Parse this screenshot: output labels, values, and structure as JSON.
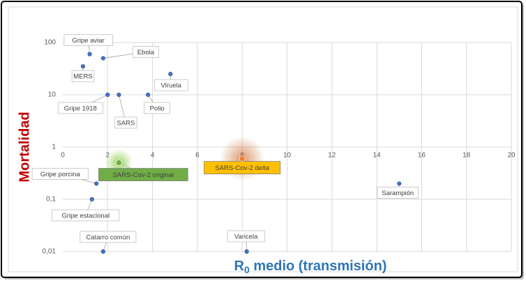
{
  "chart_data": {
    "type": "scatter",
    "y_label": "Mortalidad",
    "x_label": {
      "main": "R",
      "sub": "0",
      "rest": " medio (transmisión)"
    },
    "labels": [
      "Gripe aviar",
      "Ebola",
      "MERS",
      "Viruela",
      "Gripe 1918",
      "SARS",
      "Polio",
      "SARS-Cov-2 original",
      "SARS-Cov-2 delta",
      "Gripe porcina",
      "Gripe estacional",
      "Sarampión",
      "Catarro común",
      "Varicela"
    ],
    "x": [
      1.2,
      1.8,
      0.9,
      4.8,
      2,
      2.5,
      3.8,
      2.5,
      8,
      1.5,
      1.3,
      15,
      1.8,
      8.2
    ],
    "values": [
      60,
      50,
      35,
      25,
      10,
      10,
      10,
      0.5,
      0.6,
      0.2,
      0.1,
      0.2,
      0.01,
      0.01
    ],
    "label_colors": [
      null,
      null,
      null,
      null,
      null,
      null,
      null,
      "#70ad47",
      "#ffc000",
      null,
      null,
      null,
      null,
      null
    ],
    "color": "#4472c4",
    "xlim": [
      0,
      20
    ],
    "xticks": [
      0,
      2,
      4,
      6,
      8,
      10,
      12,
      14,
      16,
      18,
      20
    ],
    "ylim": [
      0.01,
      100
    ],
    "log_y": true,
    "yticks": [
      {
        "value": 0.01,
        "label": "0,01"
      },
      {
        "value": 0.1,
        "label": "0,1"
      },
      1,
      10,
      100
    ],
    "x_axis_crosses": 1,
    "grid": true
  }
}
